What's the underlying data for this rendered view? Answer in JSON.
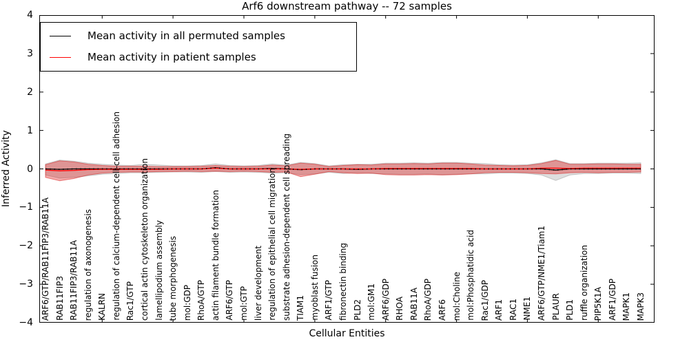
{
  "chart_data": {
    "type": "line",
    "title": "Arf6 downstream pathway -- 72 samples",
    "xlabel": "Cellular Entities",
    "ylabel": "Inferred Activity",
    "ylim": [
      -4,
      4
    ],
    "yticks": [
      4,
      3,
      2,
      1,
      0,
      -1,
      -2,
      -3,
      -4
    ],
    "ytick_labels": [
      "4",
      "3",
      "2",
      "1",
      "0",
      "−1",
      "−2",
      "−3",
      "−4"
    ],
    "xtick_every": 5,
    "legend_position": "upper-left",
    "grid": false,
    "categories": [
      "ARF6/GTP/RAB11FIP3/RAB11A",
      "RAB11FIP3",
      "RAB11FIP3/RAB11A",
      "regulation of axonogenesis",
      "KALRN",
      "regulation of calcium-dependent cell-cell adhesion",
      "Rac1/GTP",
      "cortical actin cytoskeleton organization",
      "lamellipodium assembly",
      "tube morphogenesis",
      "mol:GDP",
      "RhoA/GTP",
      "actin filament bundle formation",
      "ARF6/GTP",
      "mol:GTP",
      "liver development",
      "regulation of epithelial cell migration",
      "substrate adhesion-dependent cell spreading",
      "TIAM1",
      "myoblast fusion",
      "ARF1/GTP",
      "fibronectin binding",
      "PLD2",
      "mol:GM1",
      "ARF6/GDP",
      "RHOA",
      "RAB11A",
      "RhoA/GDP",
      "ARF6",
      "mol:Choline",
      "mol:Phosphatidic acid",
      "Rac1/GDP",
      "ARF1",
      "RAC1",
      "NME1",
      "ARF6/GTP/NME1/Tiam1",
      "PLAUR",
      "PLD1",
      "ruffle organization",
      "PIP5K1A",
      "ARF1/GDP",
      "MAPK1",
      "MAPK3"
    ],
    "series": [
      {
        "name": "Mean activity in all permuted samples",
        "color": "#000000",
        "values": [
          0,
          -0.01,
          0,
          0,
          0,
          0,
          0,
          0,
          0,
          0,
          0,
          0,
          0.03,
          0,
          0,
          0,
          0.01,
          0,
          -0.02,
          0,
          0,
          0,
          -0.01,
          0,
          0,
          0,
          0,
          0,
          0,
          0,
          0,
          0,
          0,
          0,
          0,
          0,
          -0.03,
          0,
          0,
          0,
          0,
          0,
          0
        ]
      },
      {
        "name": "Mean activity in patient samples",
        "color": "#ff0000",
        "values": [
          -0.03,
          -0.05,
          -0.04,
          -0.02,
          -0.01,
          -0.01,
          -0.01,
          -0.01,
          -0.01,
          0,
          0,
          0,
          0.02,
          0,
          0,
          0,
          0,
          0,
          -0.01,
          0,
          0,
          0,
          0,
          0,
          0.01,
          0.01,
          0.01,
          0.01,
          0.01,
          0.01,
          0.01,
          0,
          0,
          0,
          0,
          0.02,
          0.02,
          0.01,
          0.02,
          0.02,
          0.02,
          0.02,
          0.02
        ]
      }
    ],
    "bands": [
      {
        "name": "permuted-samples-range",
        "fill": "rgba(0,0,0,0.13)",
        "edge": "rgba(0,0,0,0.18)",
        "upper": [
          0.13,
          0.23,
          0.2,
          0.15,
          0.12,
          0.1,
          0.09,
          0.12,
          0.1,
          0.08,
          0.08,
          0.09,
          0.13,
          0.09,
          0.08,
          0.09,
          0.13,
          0.1,
          0.17,
          0.14,
          0.08,
          0.11,
          0.12,
          0.12,
          0.15,
          0.15,
          0.16,
          0.15,
          0.17,
          0.17,
          0.15,
          0.14,
          0.11,
          0.1,
          0.11,
          0.16,
          0.24,
          0.14,
          0.14,
          0.15,
          0.15,
          0.15,
          0.16
        ],
        "lower": [
          -0.16,
          -0.24,
          -0.22,
          -0.18,
          -0.14,
          -0.12,
          -0.1,
          -0.1,
          -0.09,
          -0.08,
          -0.08,
          -0.09,
          -0.07,
          -0.09,
          -0.08,
          -0.09,
          -0.11,
          -0.1,
          -0.15,
          -0.13,
          -0.09,
          -0.12,
          -0.1,
          -0.12,
          -0.13,
          -0.14,
          -0.14,
          -0.13,
          -0.15,
          -0.14,
          -0.13,
          -0.13,
          -0.11,
          -0.11,
          -0.12,
          -0.16,
          -0.3,
          -0.16,
          -0.12,
          -0.12,
          -0.11,
          -0.11,
          -0.12
        ]
      },
      {
        "name": "patient-samples-range",
        "fill": "rgba(224,32,32,0.38)",
        "edge": "rgba(216,32,32,0.55)",
        "upper": [
          0.11,
          0.21,
          0.18,
          0.12,
          0.09,
          0.07,
          0.07,
          0.07,
          0.06,
          0.06,
          0.06,
          0.07,
          0.09,
          0.07,
          0.06,
          0.07,
          0.1,
          0.08,
          0.15,
          0.12,
          0.06,
          0.09,
          0.11,
          0.1,
          0.13,
          0.13,
          0.14,
          0.13,
          0.15,
          0.15,
          0.13,
          0.1,
          0.09,
          0.08,
          0.09,
          0.14,
          0.22,
          0.12,
          0.12,
          0.13,
          0.13,
          0.12,
          0.12
        ],
        "lower": [
          -0.22,
          -0.31,
          -0.25,
          -0.16,
          -0.11,
          -0.09,
          -0.08,
          -0.08,
          -0.07,
          -0.07,
          -0.06,
          -0.07,
          -0.06,
          -0.07,
          -0.06,
          -0.07,
          -0.09,
          -0.08,
          -0.2,
          -0.14,
          -0.07,
          -0.1,
          -0.12,
          -0.11,
          -0.15,
          -0.16,
          -0.16,
          -0.15,
          -0.16,
          -0.15,
          -0.13,
          -0.1,
          -0.09,
          -0.09,
          -0.1,
          -0.12,
          -0.13,
          -0.1,
          -0.09,
          -0.1,
          -0.09,
          -0.09,
          -0.08
        ]
      }
    ]
  },
  "legend": {
    "items": [
      {
        "label": "Mean activity in all permuted samples",
        "color": "#000000"
      },
      {
        "label": "Mean activity in patient samples",
        "color": "#ff0000"
      }
    ]
  }
}
